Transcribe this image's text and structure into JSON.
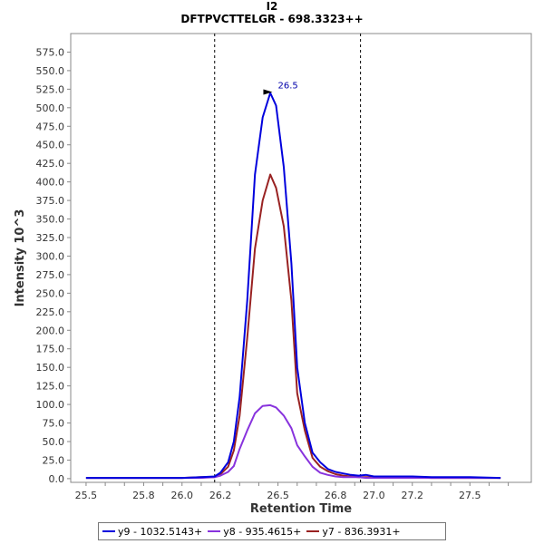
{
  "chart_data": {
    "type": "line",
    "title": "I2",
    "subtitle": "DFTPVCTTELGR - 698.3323++",
    "xlabel": "Retention Time",
    "ylabel": "Intensity 10^3",
    "xlim": [
      25.42,
      27.82
    ],
    "ylim": [
      -5,
      600
    ],
    "xticks": [
      25.5,
      25.6,
      25.7,
      25.8,
      25.9,
      26.0,
      26.1,
      26.2,
      26.3,
      26.4,
      26.5,
      26.6,
      26.7,
      26.8,
      26.9,
      27.0,
      27.1,
      27.2,
      27.3,
      27.4,
      27.5,
      27.6,
      27.7
    ],
    "xtick_labels": [
      "25.5",
      "",
      "",
      "25.8",
      "",
      "26.0",
      "",
      "26.2",
      "",
      "",
      "26.5",
      "",
      "",
      "26.8",
      "",
      "27.0",
      "",
      "27.2",
      "",
      "",
      "27.5",
      "",
      ""
    ],
    "yticks": [
      0,
      25,
      50,
      75,
      100,
      125,
      150,
      175,
      200,
      225,
      250,
      275,
      300,
      325,
      350,
      375,
      400,
      425,
      450,
      475,
      500,
      525,
      550,
      575
    ],
    "ytick_labels": [
      "0.0",
      "25.0",
      "50.0",
      "75.0",
      "100.0",
      "125.0",
      "150.0",
      "175.0",
      "200.0",
      "225.0",
      "250.0",
      "275.0",
      "300.0",
      "325.0",
      "350.0",
      "375.0",
      "400.0",
      "425.0",
      "450.0",
      "475.0",
      "500.0",
      "525.0",
      "550.0",
      "575.0"
    ],
    "vlines": [
      26.17,
      26.93
    ],
    "peak_annotation": {
      "x": 26.49,
      "y": 520,
      "label": "26.5"
    },
    "grid": false,
    "legend_position": "bottom",
    "series": [
      {
        "name": "y9 - 1032.5143+",
        "color": "#0000dd",
        "x": [
          25.5,
          25.6,
          25.7,
          25.8,
          25.9,
          26.0,
          26.1,
          26.17,
          26.2,
          26.24,
          26.27,
          26.3,
          26.34,
          26.38,
          26.42,
          26.46,
          26.49,
          26.53,
          26.57,
          26.6,
          26.64,
          26.68,
          26.72,
          26.76,
          26.8,
          26.84,
          26.88,
          26.92,
          26.96,
          27.0,
          27.05,
          27.1,
          27.2,
          27.3,
          27.4,
          27.5,
          27.66
        ],
        "y": [
          1,
          1,
          1,
          1,
          1,
          1,
          2,
          3,
          8,
          22,
          50,
          110,
          240,
          410,
          487,
          520,
          503,
          420,
          290,
          150,
          75,
          35,
          22,
          13,
          9,
          7,
          5,
          4,
          5,
          3,
          3,
          3,
          3,
          2,
          2,
          2,
          1
        ]
      },
      {
        "name": "y8 - 935.4615+",
        "color": "#8833dd",
        "x": [
          25.5,
          25.6,
          25.7,
          25.8,
          25.9,
          26.0,
          26.1,
          26.17,
          26.2,
          26.24,
          26.27,
          26.3,
          26.34,
          26.38,
          26.42,
          26.46,
          26.49,
          26.53,
          26.57,
          26.6,
          26.64,
          26.68,
          26.72,
          26.76,
          26.8,
          26.84,
          26.88,
          26.92,
          26.96,
          27.0,
          27.05,
          27.1,
          27.2,
          27.3,
          27.4,
          27.5,
          27.66
        ],
        "y": [
          1,
          1,
          1,
          1,
          1,
          1,
          1,
          2,
          4,
          9,
          17,
          40,
          65,
          88,
          98,
          99,
          96,
          85,
          68,
          45,
          30,
          16,
          8,
          5,
          3,
          2,
          2,
          2,
          1,
          1,
          1,
          1,
          1,
          1,
          1,
          1,
          1
        ]
      },
      {
        "name": "y7 - 836.3931+",
        "color": "#992222",
        "x": [
          25.5,
          25.6,
          25.7,
          25.8,
          25.9,
          26.0,
          26.1,
          26.17,
          26.2,
          26.24,
          26.27,
          26.3,
          26.34,
          26.38,
          26.42,
          26.46,
          26.49,
          26.53,
          26.57,
          26.6,
          26.64,
          26.68,
          26.72,
          26.76,
          26.8,
          26.84,
          26.88,
          26.92,
          26.96,
          27.0,
          27.05,
          27.1,
          27.2,
          27.3,
          27.4,
          27.5,
          27.66
        ],
        "y": [
          1,
          1,
          1,
          1,
          1,
          1,
          2,
          2,
          6,
          16,
          38,
          85,
          190,
          310,
          375,
          410,
          392,
          340,
          240,
          115,
          65,
          28,
          16,
          10,
          6,
          4,
          3,
          2,
          2,
          2,
          2,
          2,
          2,
          1,
          1,
          1,
          1
        ]
      }
    ]
  }
}
